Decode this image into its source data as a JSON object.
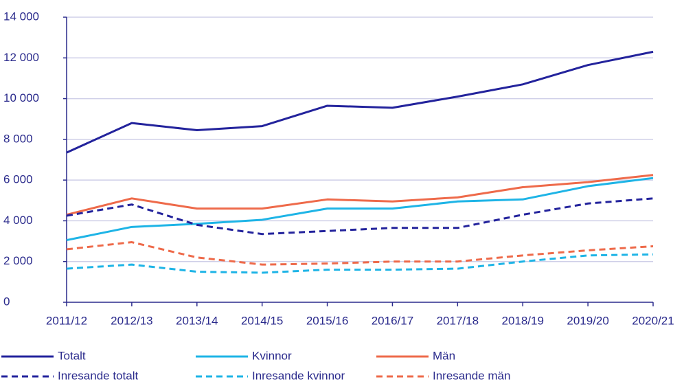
{
  "chart_data": {
    "type": "line",
    "categories": [
      "2011/12",
      "2012/13",
      "2013/14",
      "2014/15",
      "2015/16",
      "2016/17",
      "2017/18",
      "2018/19",
      "2019/20",
      "2020/21"
    ],
    "series": [
      {
        "name": "Totalt",
        "color": "#23239c",
        "dashed": false,
        "values": [
          7350,
          8800,
          8450,
          8650,
          9650,
          9550,
          10100,
          10700,
          11650,
          12300
        ]
      },
      {
        "name": "Kvinnor",
        "color": "#1eb4e6",
        "dashed": false,
        "values": [
          3050,
          3700,
          3850,
          4050,
          4600,
          4600,
          4950,
          5050,
          5700,
          6100
        ]
      },
      {
        "name": "Män",
        "color": "#ee6a4a",
        "dashed": false,
        "values": [
          4300,
          5100,
          4600,
          4600,
          5050,
          4950,
          5150,
          5650,
          5900,
          6250
        ]
      },
      {
        "name": "Inresande totalt",
        "color": "#23239c",
        "dashed": true,
        "values": [
          4250,
          4800,
          3800,
          3350,
          3500,
          3650,
          3650,
          4300,
          4850,
          5100
        ]
      },
      {
        "name": "Inresande kvinnor",
        "color": "#1eb4e6",
        "dashed": true,
        "values": [
          1650,
          1850,
          1500,
          1450,
          1600,
          1600,
          1650,
          2000,
          2300,
          2350
        ]
      },
      {
        "name": "Inresande män",
        "color": "#ee6a4a",
        "dashed": true,
        "values": [
          2600,
          2950,
          2200,
          1850,
          1900,
          2000,
          2000,
          2300,
          2550,
          2750
        ]
      }
    ],
    "ylim": [
      0,
      14000
    ],
    "yticks": [
      0,
      {
        "value": 2000,
        "label": "2 000"
      },
      {
        "value": 4000,
        "label": "4 000"
      },
      {
        "value": 6000,
        "label": "6 000"
      },
      {
        "value": 8000,
        "label": "8 000"
      },
      {
        "value": 10000,
        "label": "10 000"
      },
      {
        "value": 12000,
        "label": "12 000"
      },
      {
        "value": 14000,
        "label": "14 000"
      }
    ],
    "grid": true,
    "legend": "bottom"
  }
}
